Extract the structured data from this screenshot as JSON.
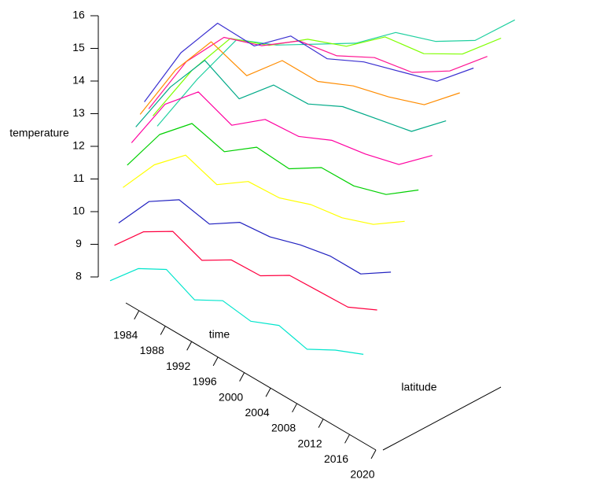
{
  "chart_data": {
    "type": "line3d",
    "zlabel": "temperature",
    "xlabel": "time",
    "ylabel": "latitude",
    "zlim": [
      8,
      16
    ],
    "zticks": [
      8,
      9,
      10,
      11,
      12,
      13,
      14,
      15,
      16
    ],
    "xlim": [
      1982,
      2020
    ],
    "xticks": [
      1984,
      1988,
      1992,
      1996,
      2000,
      2004,
      2008,
      2012,
      2016,
      2020
    ],
    "x": [
      1982,
      1986,
      1990,
      1994,
      1998,
      2002,
      2006,
      2010,
      2014,
      2018
    ],
    "series": [
      {
        "color": "#00e5cc",
        "values": [
          8.8,
          9.4,
          9.6,
          8.9,
          9.1,
          8.7,
          8.8,
          8.3,
          8.5,
          8.6
        ]
      },
      {
        "color": "#ff0040",
        "values": [
          9.6,
          10.2,
          10.4,
          9.7,
          9.9,
          9.6,
          9.8,
          9.5,
          9.2,
          9.3
        ]
      },
      {
        "color": "#2020c0",
        "values": [
          10.0,
          10.8,
          11.0,
          10.4,
          10.6,
          10.3,
          10.2,
          10.0,
          9.6,
          9.8
        ]
      },
      {
        "color": "#ffff00",
        "values": [
          10.8,
          11.6,
          12.0,
          11.2,
          11.4,
          11.0,
          10.9,
          10.6,
          10.5,
          10.7
        ]
      },
      {
        "color": "#00d000",
        "values": [
          11.2,
          12.2,
          12.6,
          11.8,
          12.0,
          11.4,
          11.5,
          11.0,
          10.8,
          11.0
        ]
      },
      {
        "color": "#ff00a0",
        "values": [
          11.6,
          12.8,
          13.2,
          12.2,
          12.4,
          11.9,
          11.8,
          11.4,
          11.1,
          11.4
        ]
      },
      {
        "color": "#00aa88",
        "values": [
          11.8,
          13.0,
          13.8,
          12.6,
          13.0,
          12.4,
          12.3,
          11.9,
          11.5,
          11.8
        ]
      },
      {
        "color": "#ff8c00",
        "values": [
          11.9,
          13.2,
          14.0,
          12.9,
          13.3,
          12.6,
          12.4,
          12.0,
          11.7,
          12.0
        ]
      },
      {
        "color": "#3a2fd0",
        "values": [
          12.0,
          13.4,
          14.2,
          13.4,
          13.6,
          12.8,
          12.6,
          12.2,
          11.8,
          12.1
        ]
      },
      {
        "color": "#ff1493",
        "values": [
          11.5,
          12.8,
          13.4,
          13.0,
          13.0,
          12.4,
          12.2,
          11.6,
          11.5,
          11.8
        ]
      },
      {
        "color": "#7fff00",
        "values": [
          11.0,
          12.2,
          13.0,
          12.6,
          12.6,
          12.2,
          12.3,
          11.6,
          11.4,
          11.7
        ]
      },
      {
        "color": "#20d0a0",
        "values": [
          10.4,
          11.6,
          12.6,
          12.2,
          12.0,
          11.8,
          11.9,
          11.4,
          11.2,
          11.6
        ]
      }
    ]
  }
}
